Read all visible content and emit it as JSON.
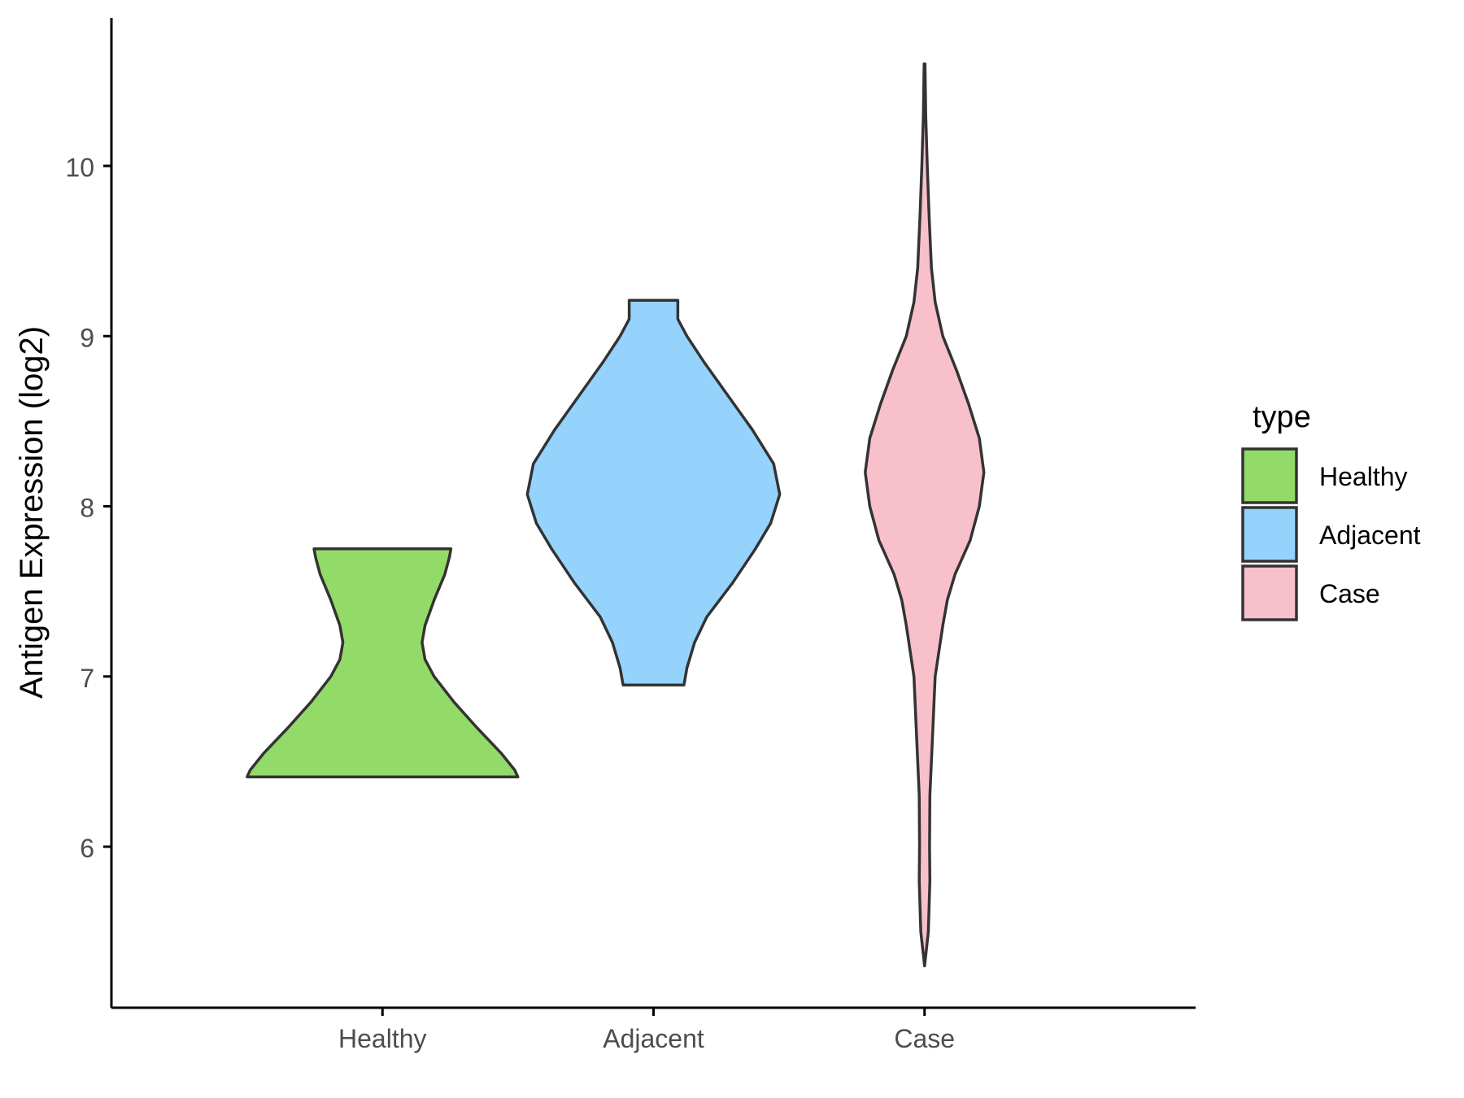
{
  "chart_data": {
    "type": "violin",
    "title": "",
    "xlabel": "",
    "ylabel": "Antigen Expression (log2)",
    "ylim": [
      5.0,
      10.85
    ],
    "yticks": [
      6,
      7,
      8,
      9,
      10
    ],
    "categories": [
      "Healthy",
      "Adjacent",
      "Case"
    ],
    "legend": {
      "title": "type",
      "position": "right",
      "entries": [
        {
          "label": "Healthy",
          "color": "#93db69"
        },
        {
          "label": "Adjacent",
          "color": "#95d3fd"
        },
        {
          "label": "Case",
          "color": "#f7c0cb"
        }
      ]
    },
    "series": [
      {
        "category": "Healthy",
        "color": "#93db69",
        "min": 6.41,
        "max": 7.75,
        "density": [
          [
            6.41,
            0.89
          ],
          [
            6.45,
            0.87
          ],
          [
            6.55,
            0.78
          ],
          [
            6.7,
            0.62
          ],
          [
            6.85,
            0.47
          ],
          [
            7.0,
            0.34
          ],
          [
            7.1,
            0.28
          ],
          [
            7.2,
            0.26
          ],
          [
            7.3,
            0.28
          ],
          [
            7.45,
            0.34
          ],
          [
            7.6,
            0.41
          ],
          [
            7.7,
            0.44
          ],
          [
            7.75,
            0.45
          ]
        ]
      },
      {
        "category": "Adjacent",
        "color": "#95d3fd",
        "min": 6.95,
        "max": 9.21,
        "density": [
          [
            6.95,
            0.2
          ],
          [
            7.05,
            0.22
          ],
          [
            7.2,
            0.27
          ],
          [
            7.35,
            0.35
          ],
          [
            7.55,
            0.52
          ],
          [
            7.75,
            0.67
          ],
          [
            7.9,
            0.77
          ],
          [
            8.07,
            0.83
          ],
          [
            8.25,
            0.79
          ],
          [
            8.45,
            0.65
          ],
          [
            8.65,
            0.49
          ],
          [
            8.85,
            0.33
          ],
          [
            9.0,
            0.22
          ],
          [
            9.1,
            0.16
          ],
          [
            9.21,
            0.16
          ]
        ]
      },
      {
        "category": "Case",
        "color": "#f7c0cb",
        "min": 5.3,
        "max": 10.6,
        "density": [
          [
            5.3,
            0.0
          ],
          [
            5.5,
            0.025
          ],
          [
            5.8,
            0.035
          ],
          [
            6.0,
            0.033
          ],
          [
            6.3,
            0.035
          ],
          [
            6.6,
            0.05
          ],
          [
            7.0,
            0.07
          ],
          [
            7.3,
            0.12
          ],
          [
            7.45,
            0.15
          ],
          [
            7.6,
            0.2
          ],
          [
            7.8,
            0.3
          ],
          [
            8.0,
            0.36
          ],
          [
            8.2,
            0.39
          ],
          [
            8.4,
            0.36
          ],
          [
            8.6,
            0.29
          ],
          [
            8.8,
            0.21
          ],
          [
            9.0,
            0.12
          ],
          [
            9.2,
            0.07
          ],
          [
            9.4,
            0.045
          ],
          [
            9.7,
            0.03
          ],
          [
            10.0,
            0.018
          ],
          [
            10.3,
            0.008
          ],
          [
            10.6,
            0.003
          ]
        ]
      }
    ]
  }
}
